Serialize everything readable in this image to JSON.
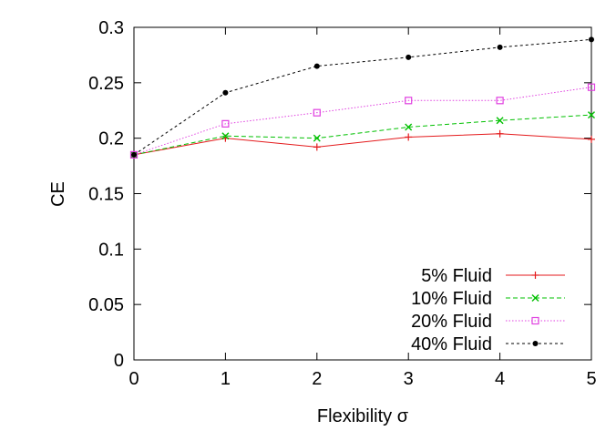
{
  "chart_data": {
    "type": "line",
    "title": "",
    "xlabel": "Flexibility σ",
    "ylabel": "CE",
    "xlim": [
      0,
      5
    ],
    "ylim": [
      0,
      0.3
    ],
    "xticks": [
      "0",
      "1",
      "2",
      "3",
      "4",
      "5"
    ],
    "yticks": [
      "0",
      "0.05",
      "0.1",
      "0.15",
      "0.2",
      "0.25",
      "0.3"
    ],
    "grid": false,
    "legend_position": "bottom-right",
    "x": [
      0,
      1,
      2,
      3,
      4,
      5
    ],
    "series": [
      {
        "name": "5% Fluid",
        "values": [
          0.185,
          0.2,
          0.192,
          0.201,
          0.204,
          0.199
        ],
        "color": "#e41a1c",
        "marker": "plus",
        "dash": "solid"
      },
      {
        "name": "10% Fluid",
        "values": [
          0.185,
          0.202,
          0.2,
          0.21,
          0.216,
          0.221
        ],
        "color": "#00c000",
        "marker": "cross",
        "dash": "dashed"
      },
      {
        "name": "20% Fluid",
        "values": [
          0.185,
          0.213,
          0.223,
          0.234,
          0.234,
          0.246
        ],
        "color": "#e040e0",
        "marker": "square",
        "dash": "dotted"
      },
      {
        "name": "40% Fluid",
        "values": [
          0.185,
          0.241,
          0.265,
          0.273,
          0.282,
          0.289
        ],
        "color": "#000000",
        "marker": "circle",
        "dash": "dashdot"
      }
    ]
  }
}
